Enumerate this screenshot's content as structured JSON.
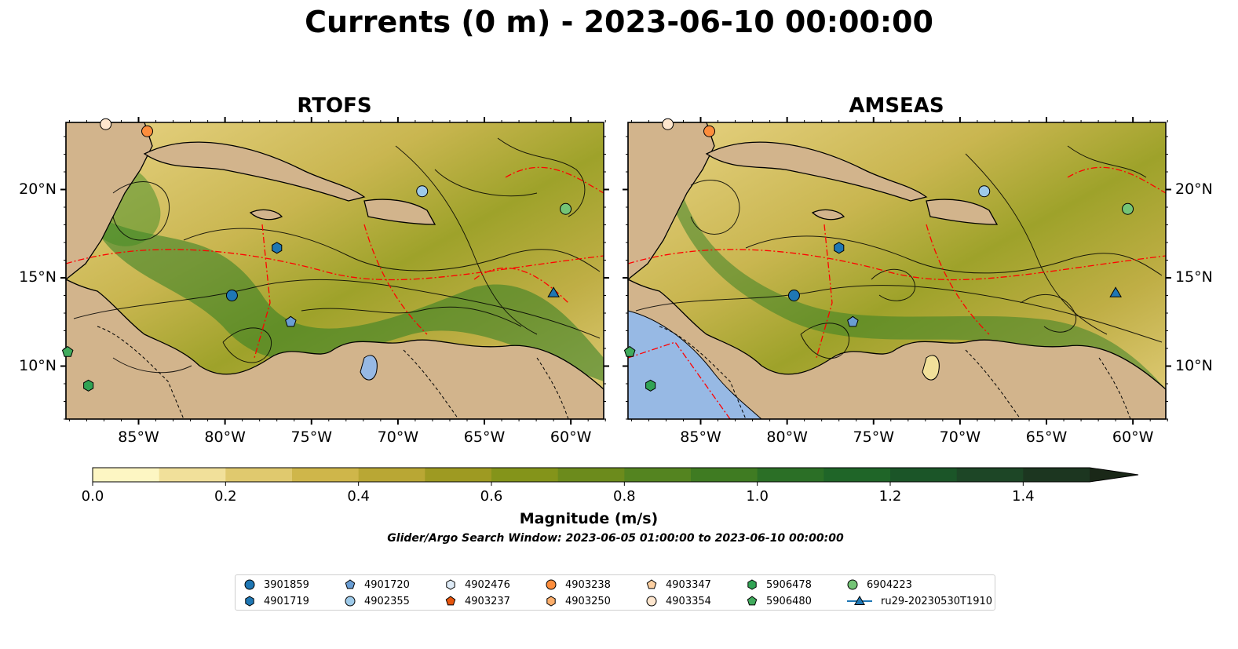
{
  "title": "Currents (0 m) - 2023-06-10 00:00:00",
  "panels": [
    {
      "title": "RTOFS"
    },
    {
      "title": "AMSEAS"
    }
  ],
  "map_extent": {
    "lon_min": -89.2,
    "lon_max": -58.1,
    "lat_min": 7.0,
    "lat_max": 23.8
  },
  "lon_ticks": [
    {
      "value": -85,
      "label": "85°W"
    },
    {
      "value": -80,
      "label": "80°W"
    },
    {
      "value": -75,
      "label": "75°W"
    },
    {
      "value": -70,
      "label": "70°W"
    },
    {
      "value": -65,
      "label": "65°W"
    },
    {
      "value": -60,
      "label": "60°W"
    }
  ],
  "lat_ticks": [
    {
      "value": 20,
      "label": "20°N"
    },
    {
      "value": 15,
      "label": "15°N"
    },
    {
      "value": 10,
      "label": "10°N"
    }
  ],
  "colorbar": {
    "label": "Magnitude (m/s)",
    "min": 0.0,
    "max": 1.5,
    "step": 0.1,
    "extend": "max",
    "ticks": [
      "0.0",
      "0.2",
      "0.4",
      "0.6",
      "0.8",
      "1.0",
      "1.2",
      "1.4"
    ],
    "colors": [
      "#fdf6c3",
      "#f1e09a",
      "#e0c96e",
      "#cfb64a",
      "#b9a734",
      "#9e9a22",
      "#84941a",
      "#6c8b1c",
      "#548420",
      "#3f7b22",
      "#2b6f26",
      "#1f6528",
      "#1b5528",
      "#1d4626",
      "#1c3620",
      "#1a2818"
    ]
  },
  "search_window": "Glider/Argo Search Window: 2023-06-05 01:00:00 to 2023-06-10 00:00:00",
  "colors": {
    "land": "#d2b48c",
    "ocean_deep": "#97b9e4",
    "eez": "#ff0000",
    "border": "#000000"
  },
  "legend": [
    {
      "label": "3901859",
      "marker": "circle",
      "color": "#1f77b4"
    },
    {
      "label": "4901719",
      "marker": "hexagon",
      "color": "#1f77b4"
    },
    {
      "label": "4901720",
      "marker": "pentagon",
      "color": "#6a9ed4"
    },
    {
      "label": "4902355",
      "marker": "circle",
      "color": "#9ecae9"
    },
    {
      "label": "4902476",
      "marker": "hexagon",
      "color": "#deebf7"
    },
    {
      "label": "4903237",
      "marker": "pentagon",
      "color": "#e6550d"
    },
    {
      "label": "4903238",
      "marker": "circle",
      "color": "#fd8d3c"
    },
    {
      "label": "4903250",
      "marker": "hexagon",
      "color": "#fdae6b"
    },
    {
      "label": "4903347",
      "marker": "pentagon",
      "color": "#fdd0a2"
    },
    {
      "label": "4903354",
      "marker": "circle",
      "color": "#fee6ce"
    },
    {
      "label": "5906478",
      "marker": "hexagon",
      "color": "#31a354"
    },
    {
      "label": "5906480",
      "marker": "pentagon",
      "color": "#41ab5d"
    },
    {
      "label": "6904223",
      "marker": "circle",
      "color": "#74c476"
    },
    {
      "label": "ru29-20230530T1910",
      "marker": "triangle",
      "color": "#1f77b4"
    }
  ],
  "observations": [
    {
      "id": "3901859",
      "lon": -79.6,
      "lat": 14.0
    },
    {
      "id": "4901720",
      "lon": -76.2,
      "lat": 12.5
    },
    {
      "id": "4901719",
      "lon": -77.0,
      "lat": 16.7
    },
    {
      "id": "4902355",
      "lon": -68.6,
      "lat": 19.9
    },
    {
      "id": "6904223",
      "lon": -60.3,
      "lat": 18.9
    },
    {
      "id": "4903238",
      "lon": -84.5,
      "lat": 23.3
    },
    {
      "id": "4903354",
      "lon": -86.9,
      "lat": 23.7
    },
    {
      "id": "5906478",
      "lon": -87.9,
      "lat": 8.9
    },
    {
      "id": "5906480",
      "lon": -89.1,
      "lat": 10.8
    },
    {
      "id": "ru29-20230530T1910",
      "lon": -61.0,
      "lat": 14.1
    }
  ]
}
